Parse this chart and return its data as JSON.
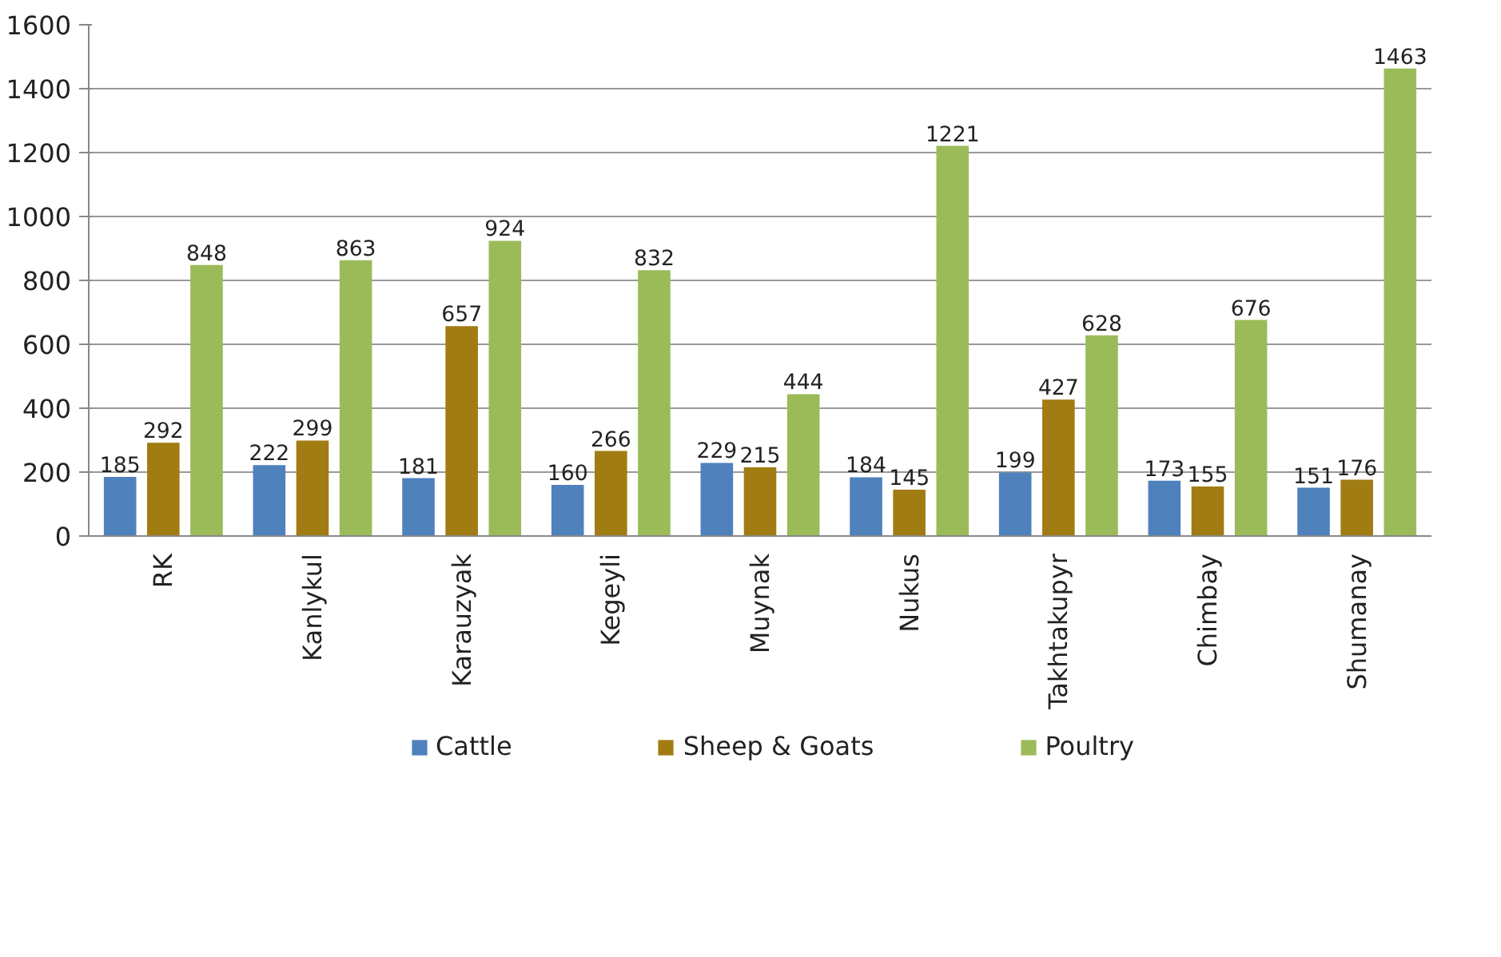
{
  "chart_data": {
    "type": "bar",
    "categories": [
      "RK",
      "Kanlykul",
      "Karauzyak",
      "Kegeyli",
      "Muynak",
      "Nukus",
      "Takhtakupyr",
      "Chimbay",
      "Shumanay"
    ],
    "series": [
      {
        "name": "Cattle",
        "color": "#4f81bd",
        "values": [
          185,
          222,
          181,
          160,
          229,
          184,
          199,
          173,
          151
        ]
      },
      {
        "name": "Sheep & Goats",
        "color": "#a07c12",
        "values": [
          292,
          299,
          657,
          266,
          215,
          145,
          427,
          155,
          176
        ]
      },
      {
        "name": "Poultry",
        "color": "#9bbb59",
        "values": [
          848,
          863,
          924,
          832,
          444,
          1221,
          628,
          676,
          1463
        ]
      }
    ],
    "ylim": [
      0,
      1600
    ],
    "yticks": [
      0,
      200,
      400,
      600,
      800,
      1000,
      1200,
      1400,
      1600
    ],
    "grid": "y",
    "legend": "bottom",
    "data_labels": true
  }
}
